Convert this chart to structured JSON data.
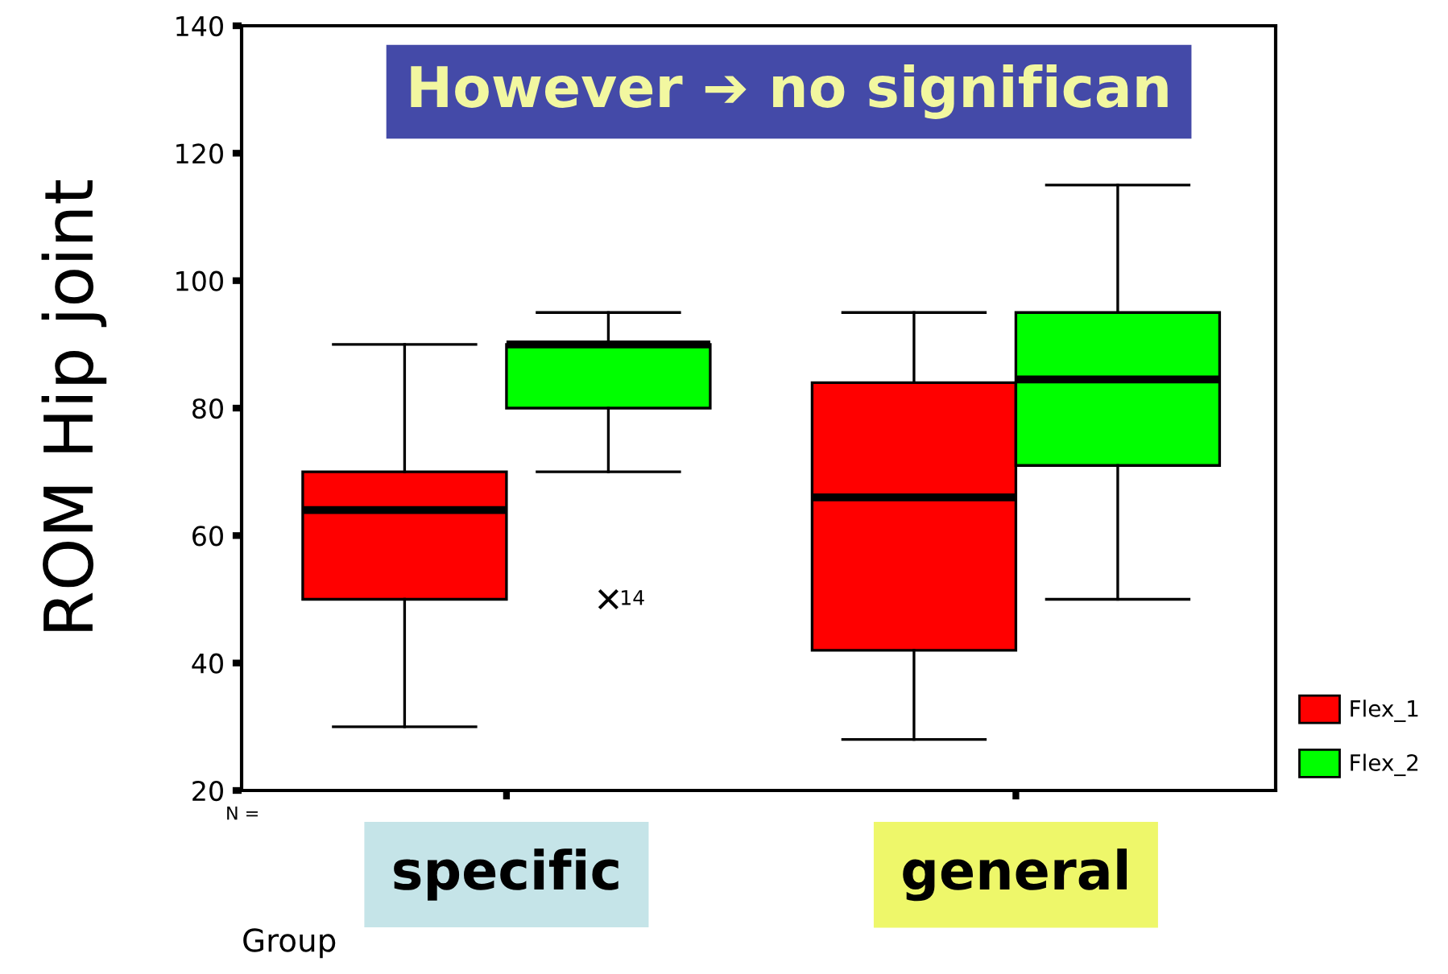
{
  "chart_data": {
    "type": "box",
    "title": "However ➔ no significan",
    "xlabel": "Group",
    "ylabel": "ROM Hip joint",
    "categories": [
      "specific",
      "general"
    ],
    "series": [
      {
        "name": "Flex_1",
        "color": "#ff0000",
        "boxes": [
          {
            "low": 30,
            "q1": 50,
            "median": 64,
            "q3": 70,
            "high": 90
          },
          {
            "low": 28,
            "q1": 42,
            "median": 66,
            "q3": 84,
            "high": 95
          }
        ]
      },
      {
        "name": "Flex_2",
        "color": "#00ff00",
        "boxes": [
          {
            "low": 70,
            "q1": 80,
            "median": 90,
            "q3": 90,
            "high": 95,
            "outliers": [
              50
            ]
          },
          {
            "low": 50,
            "q1": 71,
            "median": 84.5,
            "q3": 95,
            "high": 115
          }
        ]
      }
    ],
    "annotations": [
      "14",
      "N ="
    ],
    "ylim": [
      20,
      140
    ],
    "yticks": [
      20,
      40,
      60,
      80,
      100,
      120,
      140
    ],
    "grid": false,
    "legend": "bottom right",
    "marker": "cross"
  }
}
